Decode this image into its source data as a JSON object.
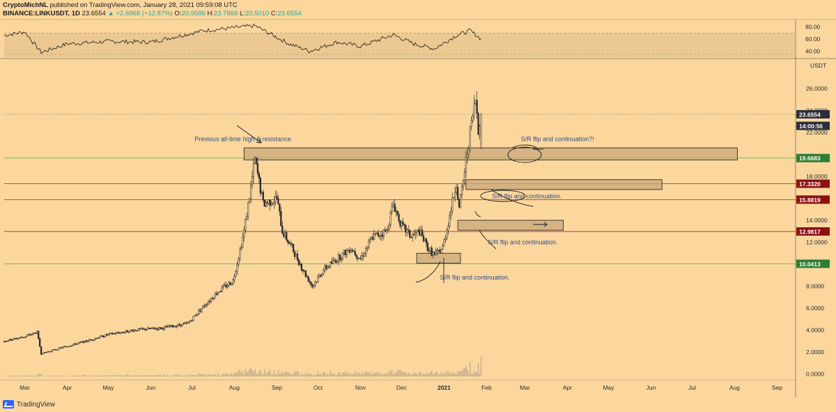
{
  "header": {
    "author": "CryptoMichNL",
    "published": "published on TradingView.com, January 28, 2021 09:59:08 UTC",
    "symbol": "BINANCE:LINKUSDT, 1D",
    "last": "23.6554",
    "change": "▲ +2.6968 (+12.87%)",
    "ohlc_o_label": "O:",
    "ohlc_o": "20.9586",
    "ohlc_h_label": "H:",
    "ohlc_h": "23.7866",
    "ohlc_l_label": "L:",
    "ohlc_l": "20.5010",
    "ohlc_c_label": "C:",
    "ohlc_c": "23.6554"
  },
  "branding": {
    "name": "TradingView"
  },
  "colors": {
    "background": "#fbd79e",
    "candle": "#2b2b2b",
    "support_green": "#4caf50",
    "resistance_red": "#b71c1c",
    "zone_fill": "#c8a77a",
    "text_annotation": "#2f4a86"
  },
  "chart_data": {
    "type": "candlestick",
    "currency_label": "USDT",
    "y_ticks": [
      "26.0000",
      "24.0000",
      "22.0000",
      "18.0000",
      "16.0000",
      "14.0000",
      "12.0000",
      "10.0000",
      "8.0000",
      "6.0000",
      "4.0000",
      "2.0000",
      "0.0000"
    ],
    "y_tick_values": [
      26,
      24,
      22,
      18,
      16,
      14,
      12,
      10,
      8,
      6,
      4,
      2,
      0
    ],
    "x_ticks": [
      "Mar",
      "Apr",
      "May",
      "Jun",
      "Jul",
      "Aug",
      "Sep",
      "Oct",
      "Nov",
      "Dec",
      "2021",
      "Feb",
      "Mar",
      "Apr",
      "May",
      "Jun",
      "Jul",
      "Aug",
      "Sep"
    ],
    "rsi_ticks": [
      "80.00",
      "60.00",
      "40.00"
    ],
    "rsi_tick_values": [
      80,
      60,
      40
    ],
    "price_labels": [
      {
        "text": "23.6554",
        "value": 23.6554,
        "kind": "last"
      },
      {
        "text": "14:00:56",
        "value": 22.6,
        "kind": "countdown"
      },
      {
        "text": "19.6683",
        "value": 19.6683,
        "kind": "green"
      },
      {
        "text": "17.3320",
        "value": 17.332,
        "kind": "red"
      },
      {
        "text": "15.8819",
        "value": 15.8819,
        "kind": "red"
      },
      {
        "text": "12.9817",
        "value": 12.9817,
        "kind": "red"
      },
      {
        "text": "10.0413",
        "value": 10.0413,
        "kind": "green"
      }
    ],
    "horizontal_levels": [
      {
        "value": 19.6683,
        "color": "green"
      },
      {
        "value": 17.332,
        "color": "red"
      },
      {
        "value": 15.8819,
        "color": "red"
      },
      {
        "value": 12.9817,
        "color": "red"
      },
      {
        "value": 10.0413,
        "color": "green"
      }
    ],
    "zones": [
      {
        "date_from": "2020-08-08",
        "date_to": "2021-08-03",
        "low": 19.5,
        "high": 20.6
      },
      {
        "date_from": "2021-01-17",
        "date_to": "2021-06-09",
        "low": 16.8,
        "high": 17.7
      },
      {
        "date_from": "2021-01-11",
        "date_to": "2021-03-29",
        "low": 13.1,
        "high": 14.0
      },
      {
        "date_from": "2020-12-12",
        "date_to": "2021-01-13",
        "low": 10.1,
        "high": 11.0
      }
    ],
    "annotations": [
      {
        "text": "Previous all-time high & resistance.",
        "date": "2020-07-03",
        "value": 21.2
      },
      {
        "text": "S/R flip and continuation?!",
        "date": "2021-02-26",
        "value": 21.2
      },
      {
        "text": "S/R flip and continuation.",
        "date": "2021-02-05",
        "value": 16.0
      },
      {
        "text": "S/R flip and continuation.",
        "date": "2021-02-02",
        "value": 11.8
      },
      {
        "text": "S/R flip and continuation.",
        "date": "2020-12-29",
        "value": 8.6
      }
    ],
    "price_keypoints": [
      [
        "2020-02-15",
        3.0
      ],
      [
        "2020-03-01",
        3.4
      ],
      [
        "2020-03-10",
        3.8
      ],
      [
        "2020-03-13",
        1.85
      ],
      [
        "2020-03-25",
        2.3
      ],
      [
        "2020-04-15",
        3.0
      ],
      [
        "2020-05-01",
        3.6
      ],
      [
        "2020-05-20",
        4.0
      ],
      [
        "2020-06-10",
        4.2
      ],
      [
        "2020-06-28",
        4.6
      ],
      [
        "2020-07-08",
        6.0
      ],
      [
        "2020-07-20",
        7.5
      ],
      [
        "2020-07-31",
        8.5
      ],
      [
        "2020-08-08",
        13.0
      ],
      [
        "2020-08-16",
        19.5
      ],
      [
        "2020-08-22",
        15.5
      ],
      [
        "2020-09-01",
        16.0
      ],
      [
        "2020-09-05",
        13.0
      ],
      [
        "2020-09-12",
        11.5
      ],
      [
        "2020-09-20",
        9.5
      ],
      [
        "2020-09-27",
        8.0
      ],
      [
        "2020-10-05",
        9.5
      ],
      [
        "2020-10-15",
        10.5
      ],
      [
        "2020-10-25",
        11.5
      ],
      [
        "2020-11-01",
        10.5
      ],
      [
        "2020-11-10",
        12.5
      ],
      [
        "2020-11-20",
        13.0
      ],
      [
        "2020-11-25",
        15.5
      ],
      [
        "2020-12-01",
        13.5
      ],
      [
        "2020-12-08",
        12.5
      ],
      [
        "2020-12-14",
        13.0
      ],
      [
        "2020-12-20",
        11.5
      ],
      [
        "2020-12-25",
        10.8
      ],
      [
        "2020-12-31",
        11.5
      ],
      [
        "2021-01-06",
        15.0
      ],
      [
        "2021-01-10",
        17.5
      ],
      [
        "2021-01-12",
        15.0
      ],
      [
        "2021-01-16",
        18.5
      ],
      [
        "2021-01-20",
        22.0
      ],
      [
        "2021-01-24",
        25.0
      ],
      [
        "2021-01-26",
        22.5
      ],
      [
        "2021-01-28",
        23.6554
      ]
    ],
    "ohlc_last": {
      "date": "2021-01-28",
      "open": 20.9586,
      "high": 23.7866,
      "low": 20.501,
      "close": 23.6554
    },
    "rsi_keypoints": [
      [
        "2020-02-15",
        66
      ],
      [
        "2020-03-01",
        72
      ],
      [
        "2020-03-13",
        38
      ],
      [
        "2020-04-01",
        52
      ],
      [
        "2020-05-01",
        56
      ],
      [
        "2020-06-01",
        55
      ],
      [
        "2020-07-10",
        74
      ],
      [
        "2020-08-16",
        82
      ],
      [
        "2020-09-10",
        52
      ],
      [
        "2020-09-25",
        40
      ],
      [
        "2020-10-15",
        55
      ],
      [
        "2020-11-01",
        48
      ],
      [
        "2020-11-25",
        67
      ],
      [
        "2020-12-10",
        52
      ],
      [
        "2020-12-25",
        44
      ],
      [
        "2021-01-10",
        66
      ],
      [
        "2021-01-20",
        74
      ],
      [
        "2021-01-28",
        60
      ]
    ],
    "volume_max_value": 3.0,
    "date_range": [
      "2020-02-15",
      "2021-09-14"
    ],
    "price_range": [
      -0.5,
      26.5
    ],
    "rsi_range": [
      30,
      90
    ],
    "grid": false
  }
}
